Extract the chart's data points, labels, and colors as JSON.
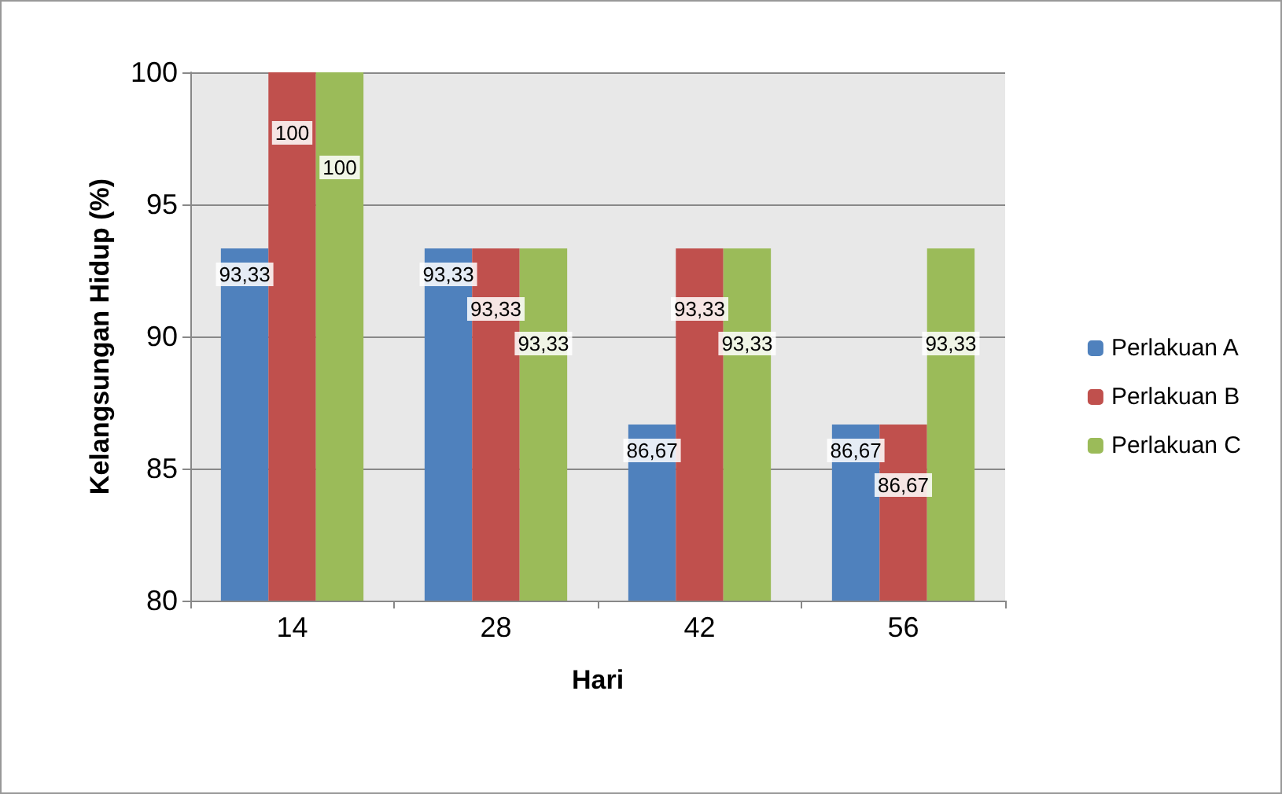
{
  "chart_data": {
    "type": "bar",
    "xlabel": "Hari",
    "ylabel": "Kelangsungan Hidup (%)",
    "categories": [
      "14",
      "28",
      "42",
      "56"
    ],
    "series": [
      {
        "name": "Perlakuan A",
        "color": "#4f81bd",
        "values": [
          93.33,
          93.33,
          86.67,
          86.67
        ],
        "value_labels": [
          "93,33",
          "93,33",
          "86,67",
          "86,67"
        ]
      },
      {
        "name": "Perlakuan B",
        "color": "#c0504d",
        "values": [
          100,
          93.33,
          93.33,
          86.67
        ],
        "value_labels": [
          "100",
          "93,33",
          "93,33",
          "86,67"
        ]
      },
      {
        "name": "Perlakuan C",
        "color": "#9bbb59",
        "values": [
          100,
          93.33,
          93.33,
          93.33
        ],
        "value_labels": [
          "100",
          "93,33",
          "93,33",
          "93,33"
        ]
      }
    ],
    "ylim": [
      80,
      100
    ],
    "yticks": [
      80,
      85,
      90,
      95,
      100
    ],
    "grid": "y",
    "legend": "right"
  }
}
